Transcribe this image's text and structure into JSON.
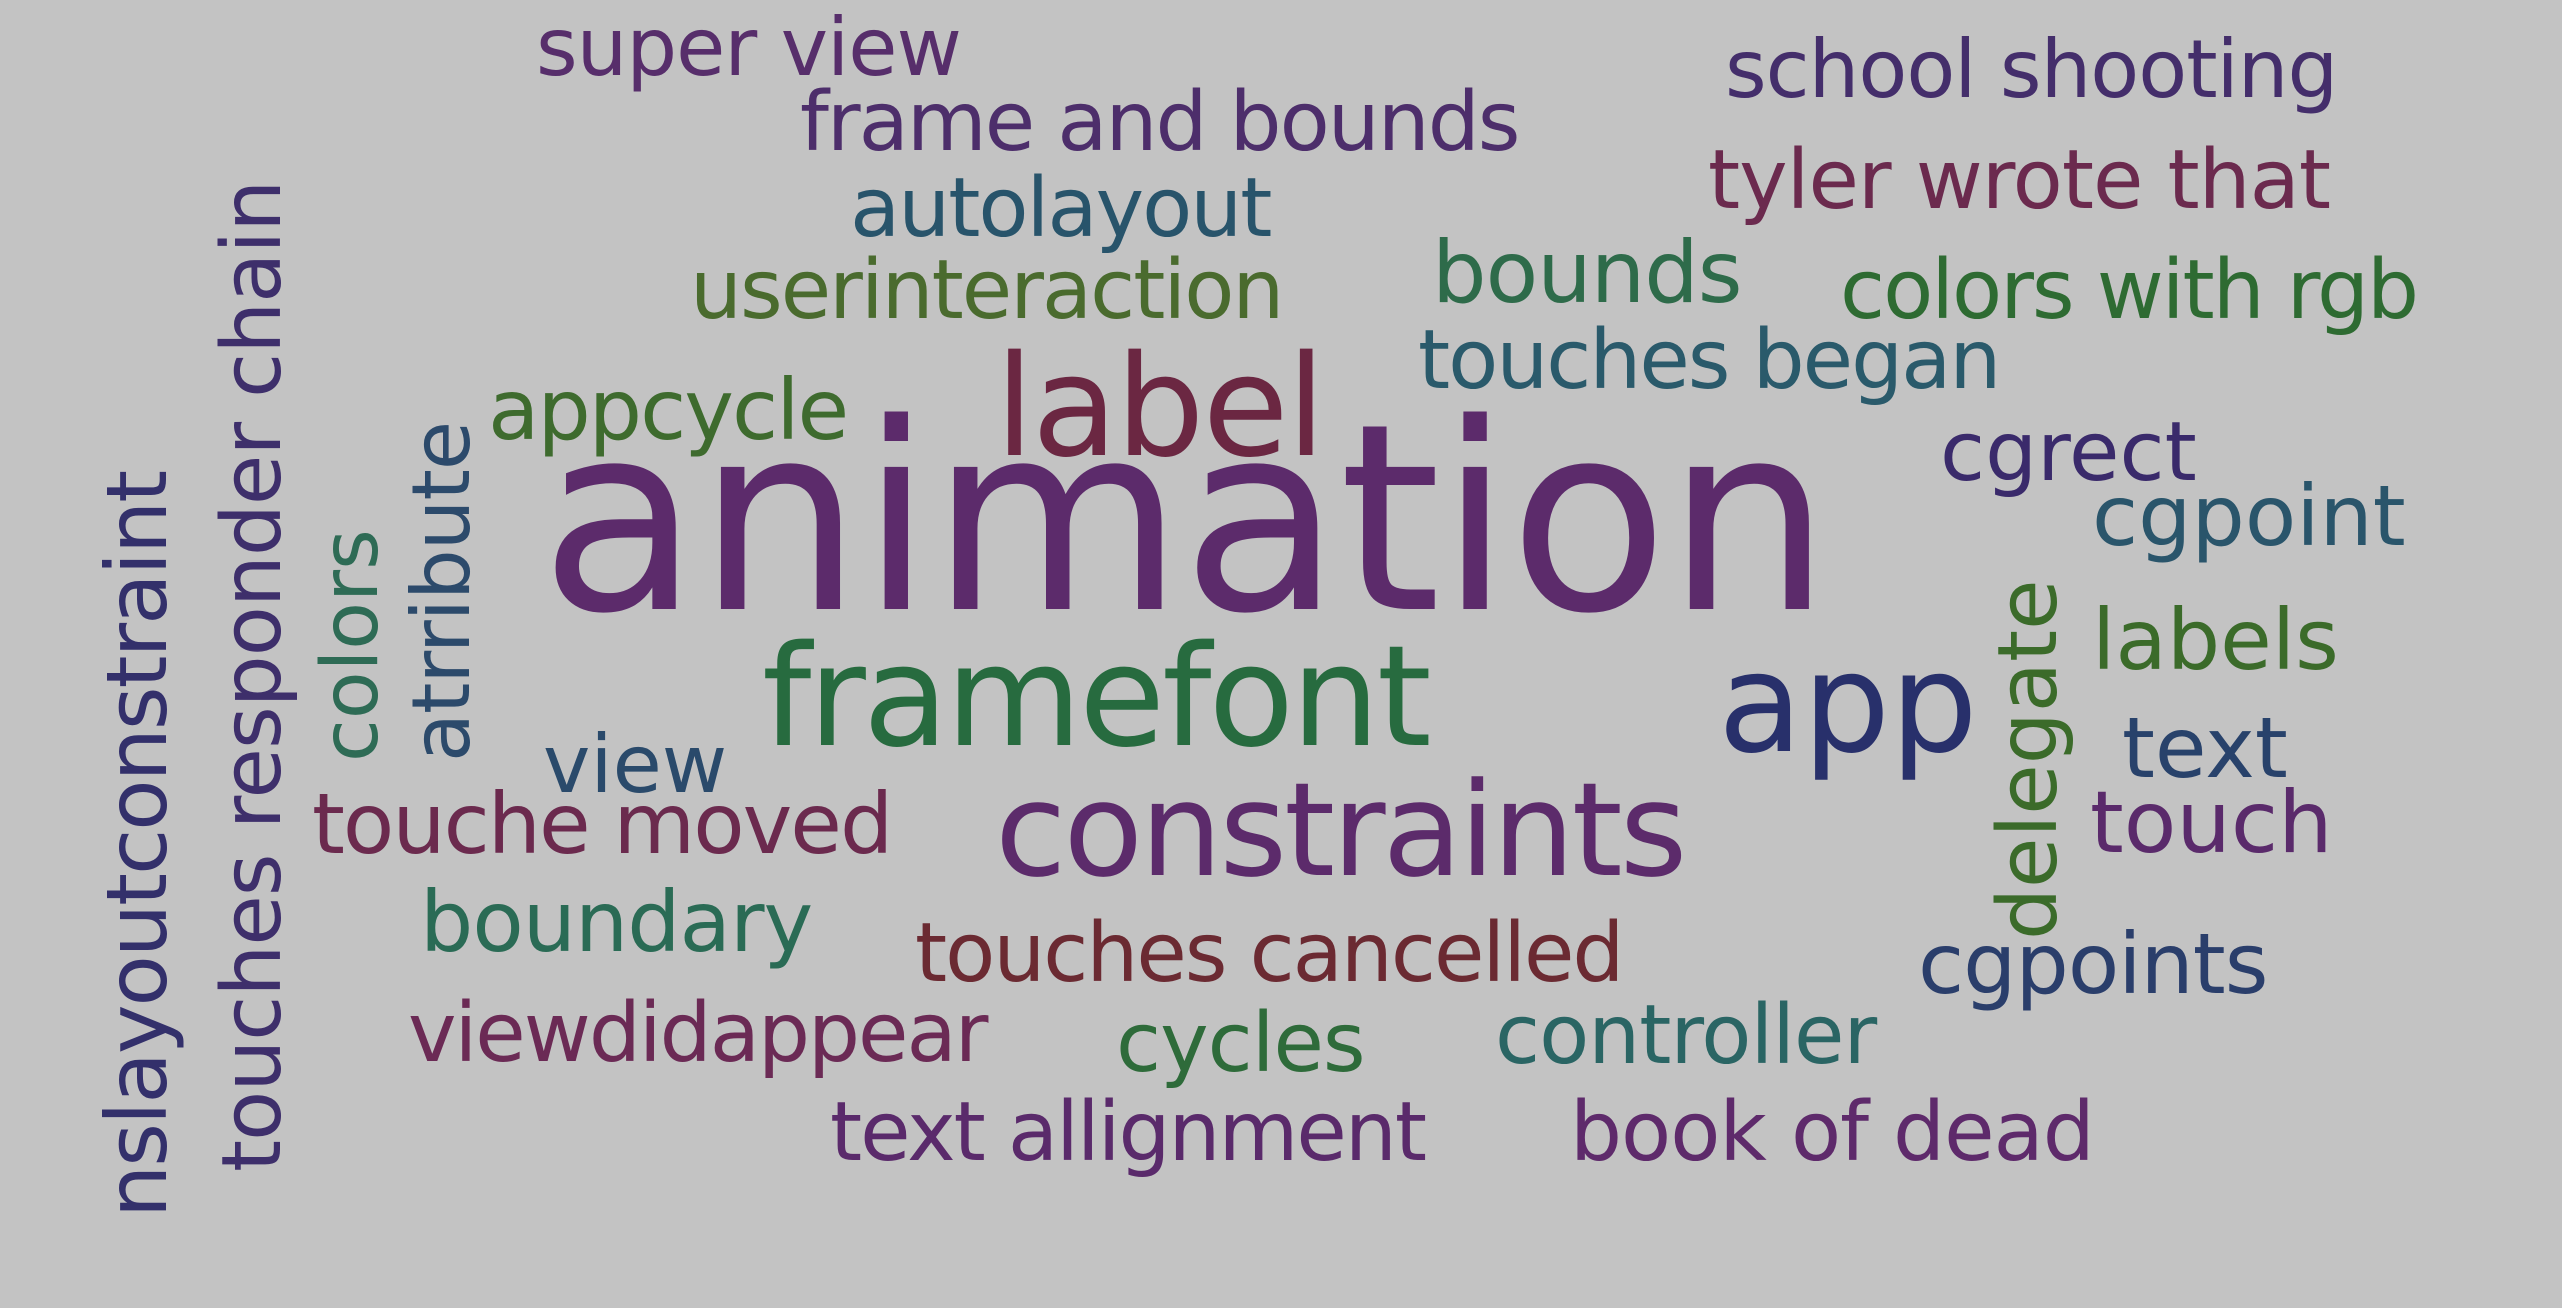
{
  "words": [
    {
      "text": "animation",
      "color": "#5c2b6b"
    },
    {
      "text": "framefont",
      "color": "#276b3f"
    },
    {
      "text": "constraints",
      "color": "#5c2b6b"
    },
    {
      "text": "label",
      "color": "#6b2742"
    },
    {
      "text": "app",
      "color": "#28306b"
    },
    {
      "text": "touches responder chain",
      "color": "#3e2f6b"
    },
    {
      "text": "nslayoutconstraint",
      "color": "#33306b"
    },
    {
      "text": "colors",
      "color": "#2e6b55"
    },
    {
      "text": "atrribute",
      "color": "#2c4a6b"
    },
    {
      "text": "super view",
      "color": "#572e6b"
    },
    {
      "text": "frame and bounds",
      "color": "#4d2e6b"
    },
    {
      "text": "autolayout",
      "color": "#28546b"
    },
    {
      "text": "userinteraction",
      "color": "#4a6b2e"
    },
    {
      "text": "appcycle",
      "color": "#3e6b2e"
    },
    {
      "text": "bounds",
      "color": "#2e6b4a"
    },
    {
      "text": "school shooting",
      "color": "#442e6b"
    },
    {
      "text": "tyler wrote that",
      "color": "#6b2a4e"
    },
    {
      "text": "colors with rgb",
      "color": "#2e6b32"
    },
    {
      "text": "touches began",
      "color": "#2a5a6b"
    },
    {
      "text": "cgrect",
      "color": "#3a2a6b"
    },
    {
      "text": "cgpoint",
      "color": "#2a556b"
    },
    {
      "text": "delegate",
      "color": "#3b6b2a"
    },
    {
      "text": "labels",
      "color": "#3b6b2a"
    },
    {
      "text": "text",
      "color": "#28426b"
    },
    {
      "text": "touch",
      "color": "#5a2a6b"
    },
    {
      "text": "view",
      "color": "#2a4a6b"
    },
    {
      "text": "touche moved",
      "color": "#6b2a4e"
    },
    {
      "text": "boundary",
      "color": "#2a6b55"
    },
    {
      "text": "touches cancelled",
      "color": "#6b2a32"
    },
    {
      "text": "viewdidappear",
      "color": "#6b2a55"
    },
    {
      "text": "cycles",
      "color": "#2e6b3a"
    },
    {
      "text": "controller",
      "color": "#2a6564"
    },
    {
      "text": "cgpoints",
      "color": "#2a3e6b"
    },
    {
      "text": "text allignment",
      "color": "#5a2a6b"
    },
    {
      "text": "book of dead",
      "color": "#5e2a6b"
    }
  ]
}
